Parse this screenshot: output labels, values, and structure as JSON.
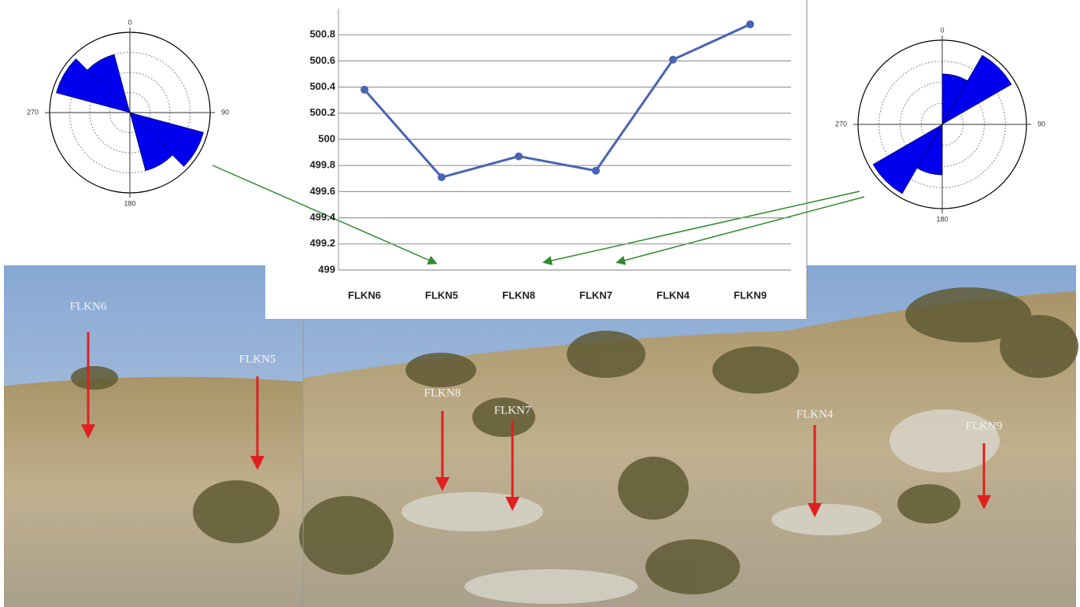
{
  "chart_data": [
    {
      "type": "line",
      "categories": [
        "FLKN6",
        "FLKN5",
        "FLKN8",
        "FLKN7",
        "FLKN4",
        "FLKN9"
      ],
      "series": [
        {
          "color": "#4a64b4",
          "values": [
            500.38,
            499.71,
            499.87,
            499.76,
            500.61,
            500.88
          ]
        }
      ],
      "ylim": [
        499,
        501
      ],
      "yticks": [
        499,
        499.2,
        499.4,
        499.6,
        499.8,
        500,
        500.2,
        500.4,
        500.6,
        500.8
      ],
      "grid": true
    },
    {
      "type": "rose",
      "color": "#0000ee",
      "angle_labels": [
        "0",
        "90",
        "180",
        "270"
      ],
      "categories": [
        300,
        330,
        120,
        150
      ],
      "values": [
        0.95,
        0.75,
        0.95,
        0.75
      ],
      "rlim": [
        0,
        1
      ]
    },
    {
      "type": "rose",
      "color": "#0000ee",
      "angle_labels": [
        "0",
        "90",
        "180",
        "270"
      ],
      "categories": [
        15,
        45,
        195,
        225
      ],
      "values": [
        0.6,
        0.95,
        0.6,
        0.95
      ],
      "rlim": [
        0,
        1
      ]
    }
  ],
  "photo_labels": [
    "FLKN6",
    "FLKN5",
    "FLKN8",
    "FLKN7",
    "FLKN4",
    "FLKN9"
  ]
}
